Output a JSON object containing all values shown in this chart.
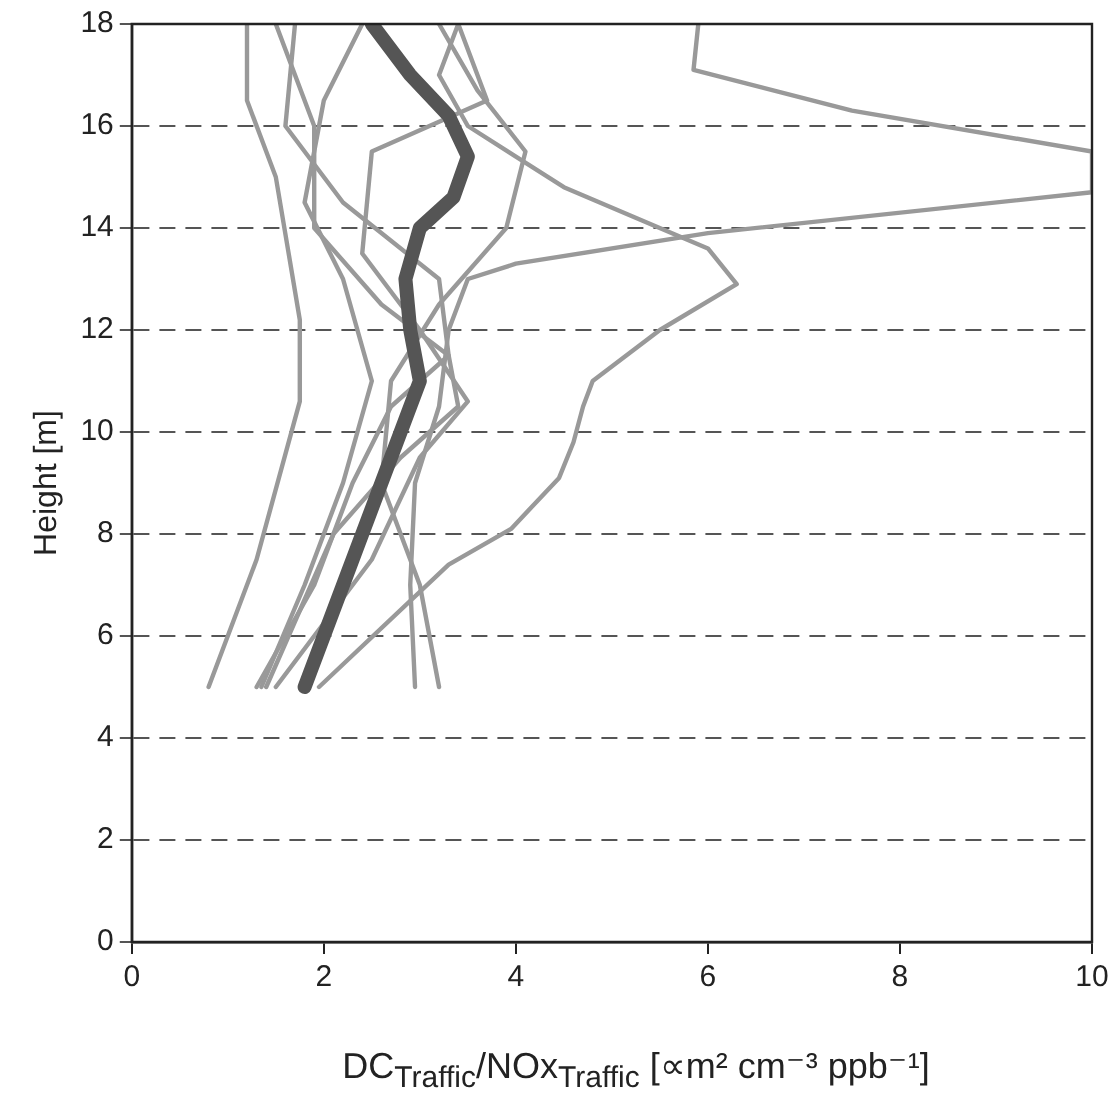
{
  "chart_data": {
    "type": "line",
    "xlabel": "DC$_{Traffic}$/NOx$_{Traffic}$ [∝m² cm⁻³ ppb⁻¹]",
    "ylabel": "Height [m]",
    "xlim": [
      0,
      10
    ],
    "xticks": [
      0,
      2,
      4,
      6,
      8,
      10
    ],
    "ylim": [
      0,
      18
    ],
    "yticks": [
      0,
      2,
      4,
      6,
      8,
      10,
      12,
      14,
      16,
      18
    ],
    "grid": "y",
    "legend": false,
    "marker": "none",
    "line_style": "solid",
    "series": [
      {
        "color": "#555555",
        "x": [
          1.8,
          2.2,
          2.6,
          2.8,
          3.0,
          2.9,
          2.85,
          3.0,
          3.35,
          3.5,
          3.3,
          2.9,
          2.5
        ],
        "values": [
          5,
          7,
          9,
          10,
          11,
          12,
          13,
          14,
          14.6,
          15.4,
          16.2,
          17,
          18
        ]
      },
      {
        "color": "#999999",
        "x": [
          2.95,
          2.9,
          2.95,
          3.2,
          3.3,
          3.5,
          4.0,
          6.0,
          10,
          10,
          7.5,
          5.85,
          5.9
        ],
        "values": [
          5,
          7,
          9,
          10.5,
          12,
          13,
          13.3,
          13.9,
          14.7,
          15.5,
          16.3,
          17.1,
          18
        ]
      },
      {
        "color": "#999999",
        "x": [
          1.95,
          3.3,
          3.95,
          4.45,
          4.6,
          4.7,
          4.8,
          5.5,
          6.3,
          6.0,
          4.5,
          3.5,
          3.2,
          3.4
        ],
        "values": [
          5,
          7.4,
          8.1,
          9.1,
          9.8,
          10.5,
          11,
          12,
          12.9,
          13.6,
          14.8,
          16,
          17,
          18
        ]
      },
      {
        "color": "#999999",
        "x": [
          0.8,
          1.3,
          1.75,
          1.75,
          1.5,
          1.2,
          1.2
        ],
        "values": [
          5,
          7.5,
          10.6,
          12.2,
          15,
          16.5,
          18
        ]
      },
      {
        "color": "#999999",
        "x": [
          1.3,
          1.9,
          2.3,
          2.7,
          3.3,
          3.2,
          2.2,
          1.6,
          1.7
        ],
        "values": [
          5,
          7,
          9,
          10.5,
          11.5,
          13,
          14.5,
          16,
          18
        ]
      },
      {
        "color": "#999999",
        "x": [
          1.4,
          2.1,
          2.8,
          3.4,
          3.3,
          2.6,
          1.9,
          1.9,
          1.5
        ],
        "values": [
          5,
          8,
          9.5,
          10.5,
          11.5,
          12.5,
          14,
          16,
          18
        ]
      },
      {
        "color": "#999999",
        "x": [
          1.5,
          2.5,
          3.0,
          3.5,
          3.0,
          2.4,
          2.5,
          3.7,
          3.4
        ],
        "values": [
          5,
          7.5,
          9.5,
          10.6,
          12,
          13.5,
          15.5,
          16.5,
          18
        ]
      },
      {
        "color": "#999999",
        "x": [
          3.2,
          3.0,
          2.6,
          2.7,
          3.2,
          3.9,
          4.1,
          3.6,
          3.2
        ],
        "values": [
          5,
          7,
          9,
          11,
          12.5,
          14,
          15.5,
          16.7,
          18
        ]
      },
      {
        "color": "#999999",
        "x": [
          1.35,
          1.8,
          2.2,
          2.5,
          2.2,
          1.8,
          2.0,
          2.4
        ],
        "values": [
          5,
          7,
          9,
          11,
          13,
          14.5,
          16.5,
          18
        ]
      }
    ]
  }
}
